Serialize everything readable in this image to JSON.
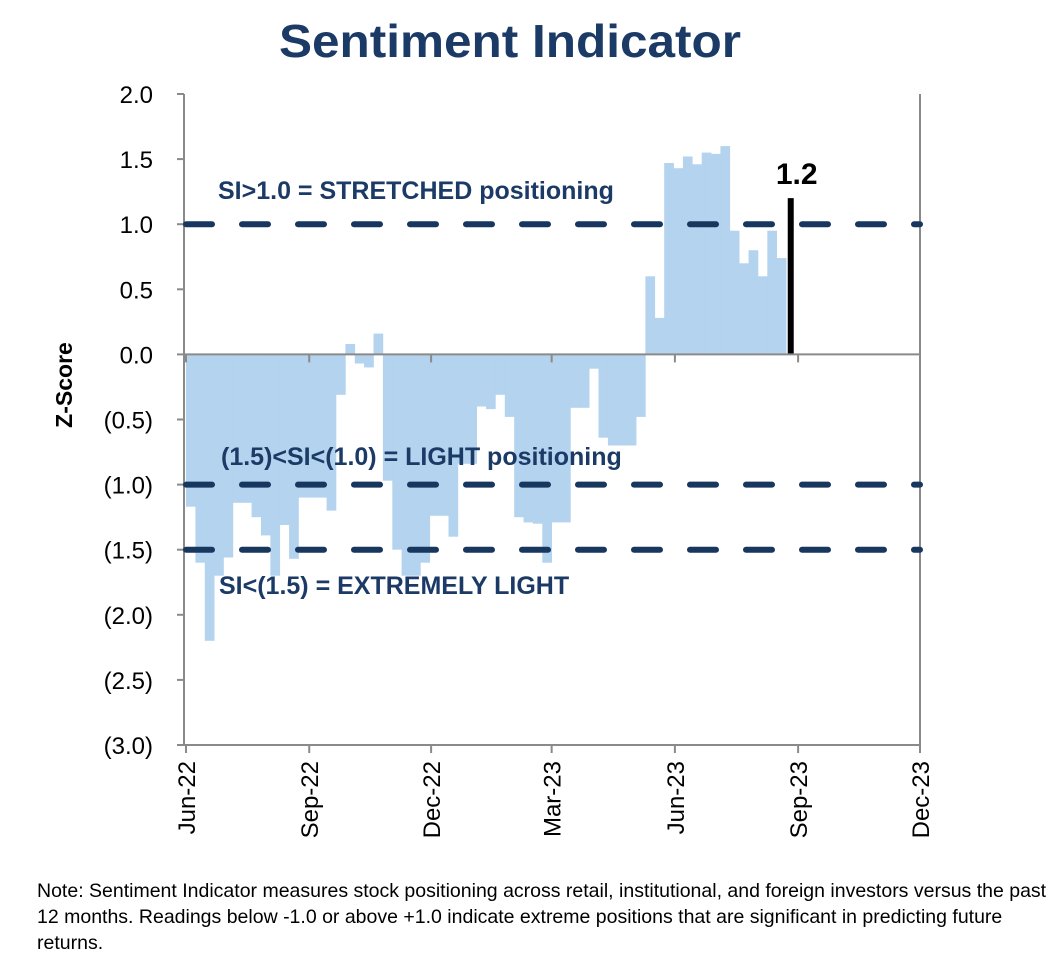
{
  "chart_data": {
    "type": "bar",
    "title": "Sentiment Indicator",
    "xlabel": "",
    "ylabel": "Z-Score",
    "ylim": [
      -3.0,
      2.0
    ],
    "yticks": [
      2.0,
      1.5,
      1.0,
      0.5,
      0.0,
      -0.5,
      -1.0,
      -1.5,
      -2.0,
      -2.5,
      -3.0
    ],
    "ytick_labels": [
      "2.0",
      "1.5",
      "1.0",
      "0.5",
      "0.0",
      "(0.5)",
      "(1.0)",
      "(1.5)",
      "(2.0)",
      "(2.5)",
      "(3.0)"
    ],
    "xrange": [
      "2022-06-01",
      "2023-12-01"
    ],
    "xticks": [
      "2022-06-01",
      "2022-09-01",
      "2022-12-01",
      "2023-03-01",
      "2023-06-01",
      "2023-09-01",
      "2023-12-01"
    ],
    "xtick_labels": [
      "Jun-22",
      "Sep-22",
      "Dec-22",
      "Mar-23",
      "Jun-23",
      "Sep-23",
      "Dec-23"
    ],
    "series": [
      {
        "name": "Sentiment Indicator",
        "color": "#b4d3ee",
        "start_date": "2022-06-01",
        "interval_days": 7,
        "values": [
          -1.17,
          -1.6,
          -2.2,
          -1.7,
          -1.56,
          -1.14,
          -1.14,
          -1.25,
          -1.39,
          -1.7,
          -1.31,
          -1.57,
          -1.1,
          -1.1,
          -1.1,
          -1.2,
          -0.31,
          0.08,
          -0.07,
          -0.1,
          0.16,
          -0.97,
          -1.5,
          -1.7,
          -1.7,
          -1.6,
          -1.24,
          -1.24,
          -1.4,
          -0.84,
          -0.84,
          -0.4,
          -0.42,
          -0.31,
          -0.48,
          -1.25,
          -1.29,
          -1.3,
          -1.6,
          -1.29,
          -1.29,
          -0.41,
          -0.41,
          -0.11,
          -0.64,
          -0.7,
          -0.7,
          -0.7,
          -0.48,
          0.6,
          0.28,
          1.47,
          1.43,
          1.52,
          1.46,
          1.55,
          1.54,
          1.6,
          0.95,
          0.7,
          0.8,
          0.6,
          0.95,
          0.74
        ]
      }
    ],
    "latest": {
      "date": "2023-08-25",
      "value": 1.2,
      "label": "1.2",
      "color": "#000000"
    },
    "thresholds": [
      {
        "value": 1.0,
        "label": "SI>1.0 = STRETCHED positioning"
      },
      {
        "value": -1.0,
        "label": "(1.5)<SI<(1.0) = LIGHT positioning"
      },
      {
        "value": -1.5,
        "label": "SI<(1.5) = EXTREMELY LIGHT"
      }
    ],
    "threshold_color": "#17375e",
    "grid": false
  },
  "note": "Note: Sentiment Indicator measures stock positioning across retail, institutional, and foreign investors versus the past 12 months. Readings below -1.0 or above +1.0 indicate extreme positions that are significant in predicting future returns."
}
